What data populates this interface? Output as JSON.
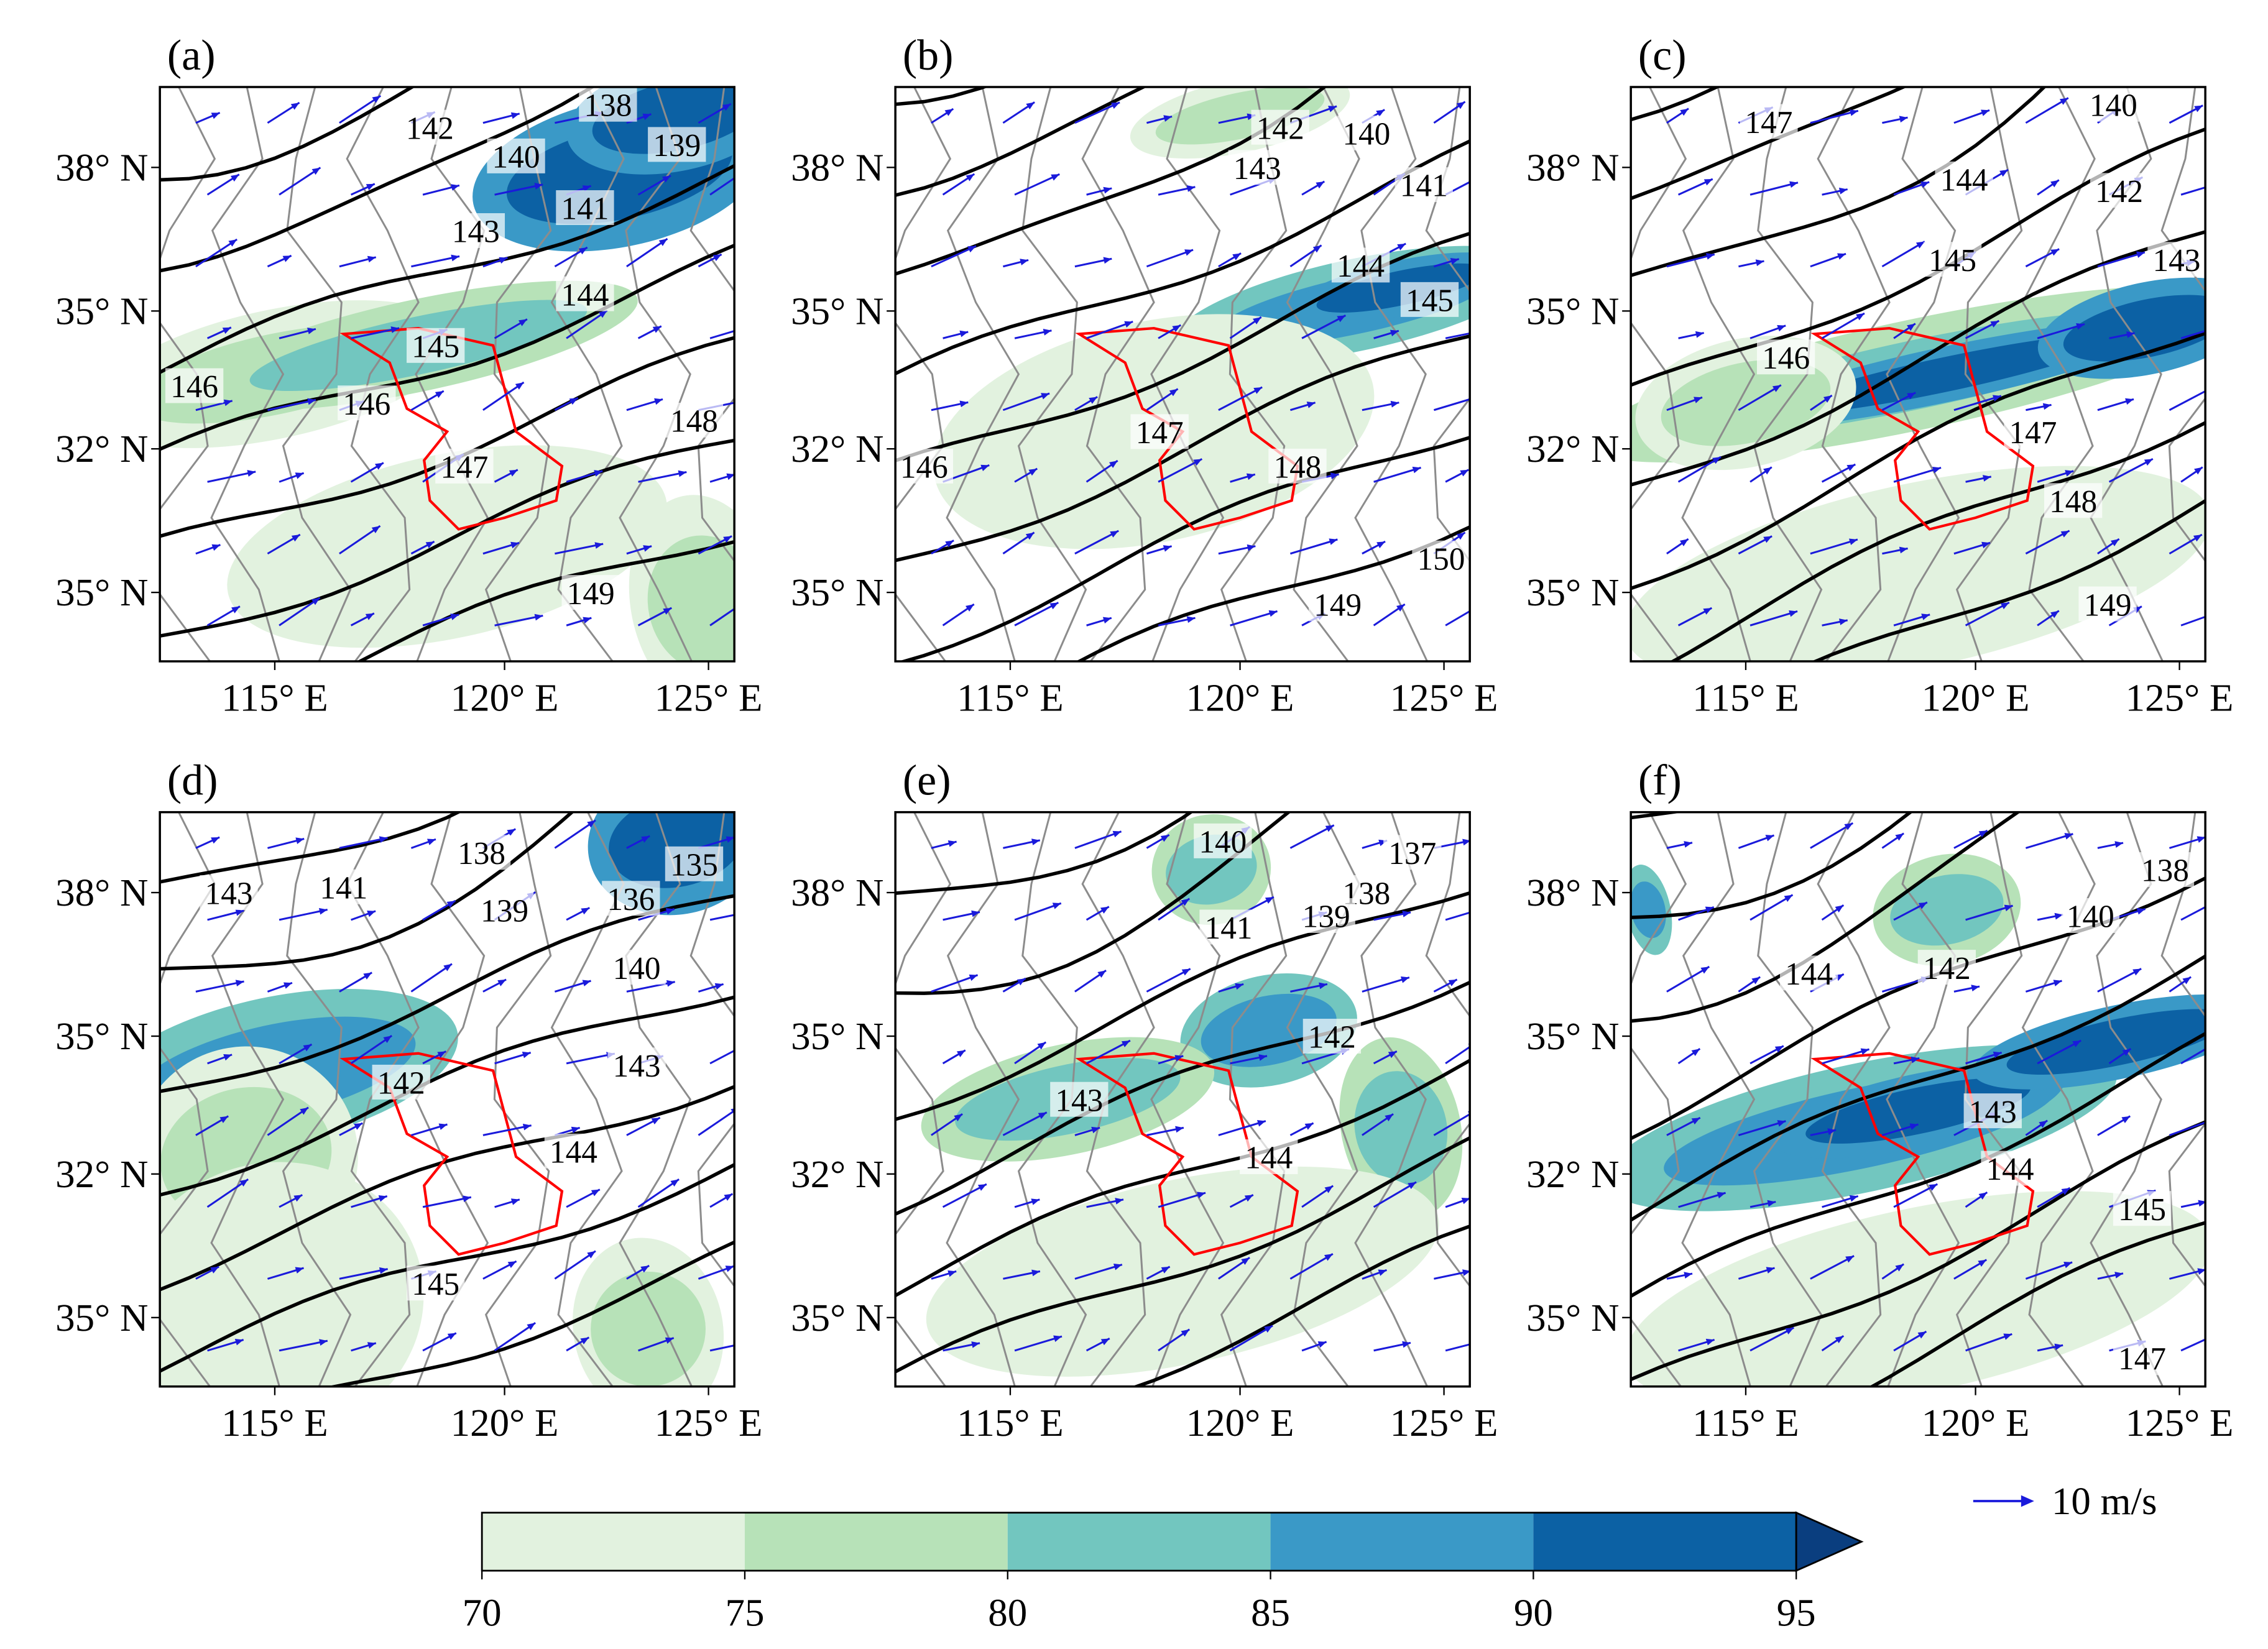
{
  "panels": [
    {
      "label": "(a)",
      "contour_labels": [
        "142",
        "138",
        "140",
        "139",
        "141",
        "143",
        "144",
        "145",
        "146",
        "146",
        "147",
        "148",
        "149"
      ]
    },
    {
      "label": "(b)",
      "contour_labels": [
        "142",
        "143",
        "140",
        "141",
        "144",
        "145",
        "147",
        "148",
        "146",
        "149",
        "150"
      ]
    },
    {
      "label": "(c)",
      "contour_labels": [
        "147",
        "144",
        "140",
        "142",
        "143",
        "145",
        "146",
        "147",
        "148",
        "149"
      ]
    },
    {
      "label": "(d)",
      "contour_labels": [
        "143",
        "141",
        "138",
        "139",
        "135",
        "136",
        "140",
        "142",
        "143",
        "144",
        "145"
      ]
    },
    {
      "label": "(e)",
      "contour_labels": [
        "140",
        "137",
        "138",
        "139",
        "141",
        "142",
        "143",
        "144"
      ]
    },
    {
      "label": "(f)",
      "contour_labels": [
        "144",
        "142",
        "138",
        "140",
        "143",
        "144",
        "145",
        "147"
      ]
    }
  ],
  "axes": {
    "lat_labels": [
      "38° N",
      "35° N",
      "32° N",
      "35° N"
    ],
    "lon_labels": [
      "115° E",
      "120° E",
      "125° E"
    ]
  },
  "colorbar": {
    "ticks": [
      70,
      75,
      80,
      85,
      90,
      95
    ],
    "colors": [
      "#e2f2df",
      "#b7e2b8",
      "#72c6bf",
      "#3a99c7",
      "#0c61a4"
    ],
    "extend_color": "#0a3e7f"
  },
  "reference_vector": {
    "label": "10 m/s",
    "color": "#1a1adb"
  }
}
